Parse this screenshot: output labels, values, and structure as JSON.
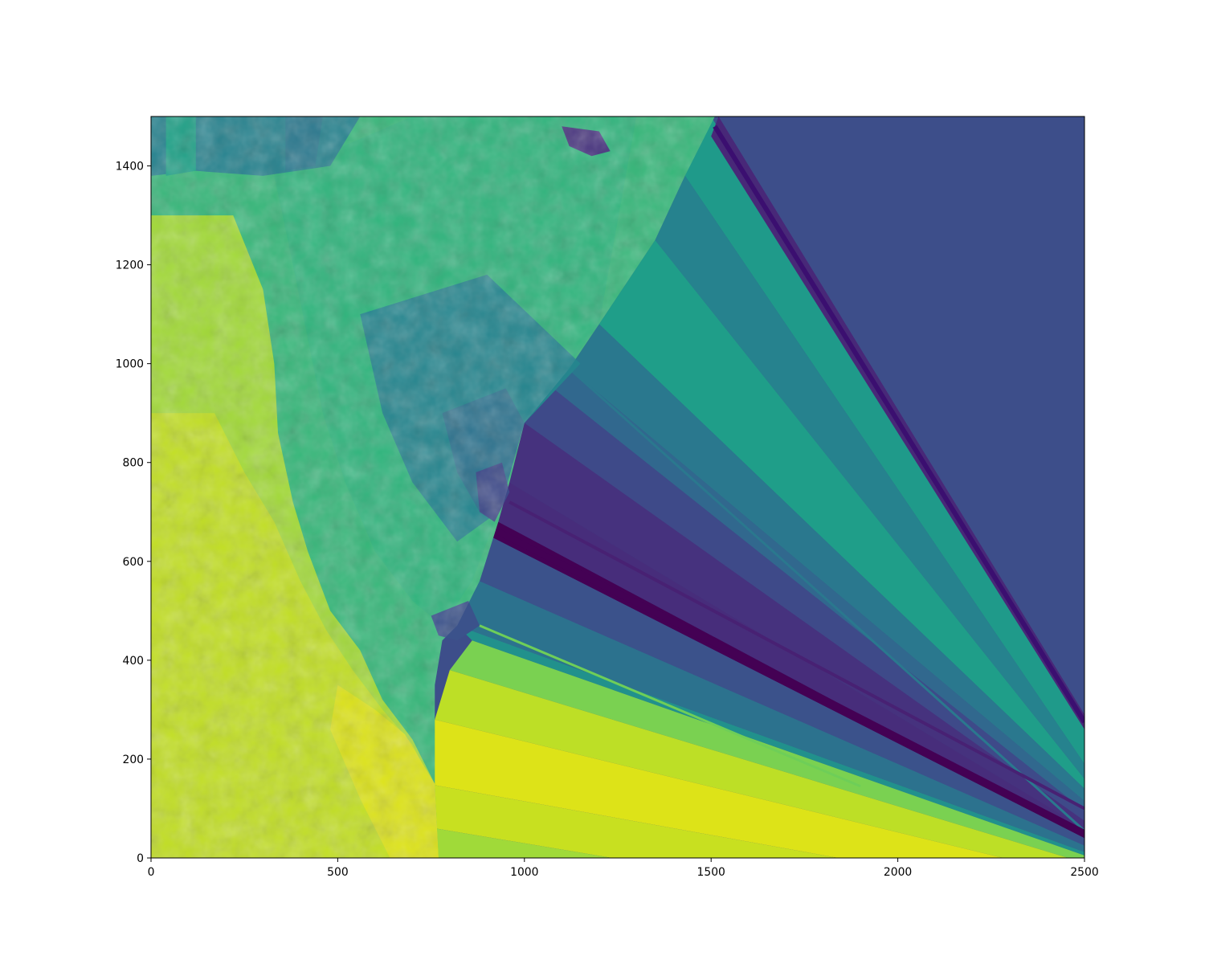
{
  "chart_data": {
    "type": "heatmap",
    "description_hidden": "",
    "colormap": "viridis",
    "colors": {
      "background": "#ffffff",
      "axis": "#000000",
      "flat_region": "#3d4e8a"
    },
    "xlim": [
      0,
      2500
    ],
    "ylim": [
      0,
      1500
    ],
    "x_ticks": [
      0,
      500,
      1000,
      1500,
      2000,
      2500
    ],
    "y_ticks": [
      0,
      200,
      400,
      600,
      800,
      1000,
      1200,
      1400
    ],
    "x_tick_labels": [
      "0",
      "500",
      "1000",
      "1500",
      "2000",
      "2500"
    ],
    "y_tick_labels": [
      "0",
      "200",
      "400",
      "600",
      "800",
      "1000",
      "1200",
      "1400"
    ],
    "title": "",
    "xlabel": "",
    "ylabel": "",
    "grid": false,
    "legend": "none"
  }
}
